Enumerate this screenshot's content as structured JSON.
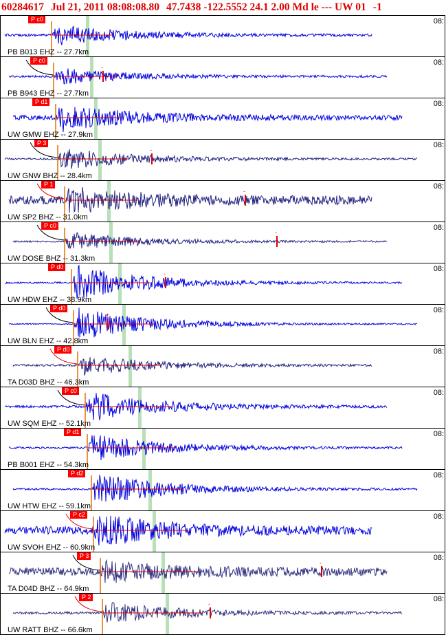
{
  "header": {
    "event_id": "60284617",
    "datetime": "Jul 21, 2011 08:08:08.80",
    "location": "47.7438 -122.5552 24.1 2.00 Md le --- UW 01",
    "suffix": "-1"
  },
  "panels": [
    {
      "station": "PB B013 EHZ -- 27.7km",
      "time": "08:",
      "pick": "P c0",
      "color": "#0000e0",
      "amp": 0.55,
      "noise": 0.06,
      "arrival": 0.18,
      "extra": "",
      "extraPos": 0,
      "curve": false
    },
    {
      "station": "PB B943 EHZ -- 27.7km",
      "time": "08:",
      "pick": "P c0",
      "color": "#0000e0",
      "amp": 0.45,
      "noise": 0.05,
      "arrival": 0.18,
      "extra": "-",
      "extraPos": 0.23,
      "curve": true
    },
    {
      "station": "UW GMW EHZ -- 27.9km",
      "time": "08:",
      "pick": "P d1",
      "color": "#0000e0",
      "amp": 0.7,
      "noise": 0.12,
      "arrival": 0.18,
      "extra": "",
      "extraPos": 0,
      "curve": false
    },
    {
      "station": "UW GNW BHZ -- 28.4km",
      "time": "08:",
      "pick": "P 3",
      "color": "#202080",
      "amp": 0.6,
      "noise": 0.05,
      "arrival": 0.18,
      "extra": "-",
      "extraPos": 0.34,
      "curve": true
    },
    {
      "station": "UW SP2 BHZ -- 31.0km",
      "time": "08:",
      "pick": "P 1",
      "color": "#202080",
      "amp": 0.6,
      "noise": 0.22,
      "arrival": 0.2,
      "extra": "-",
      "extraPos": 0.55,
      "curve": true
    },
    {
      "station": "UW DOSE BHZ -- 31.3km",
      "time": "08:",
      "pick": "P c0",
      "color": "#202080",
      "amp": 0.5,
      "noise": 0.04,
      "arrival": 0.19,
      "extra": "-",
      "extraPos": 0.62,
      "curve": true
    },
    {
      "station": "UW HDW EHZ -- 38.9km",
      "time": "08:",
      "pick": "P d0",
      "color": "#0000e0",
      "amp": 0.95,
      "noise": 0.04,
      "arrival": 0.21,
      "extra": "-",
      "extraPos": 0.37,
      "curve": false
    },
    {
      "station": "UW BLN EHZ -- 42.8km",
      "time": "08:",
      "pick": "P d0",
      "color": "#0000e0",
      "amp": 0.9,
      "noise": 0.03,
      "arrival": 0.21,
      "extra": "+",
      "extraPos": 0.24,
      "curve": true
    },
    {
      "station": "TA D03D BHZ -- 46.3km",
      "time": "08:",
      "pick": "P d0",
      "color": "#202080",
      "amp": 0.55,
      "noise": 0.05,
      "arrival": 0.22,
      "extra": "",
      "extraPos": 0,
      "curve": true
    },
    {
      "station": "UW SQM EHZ -- 52.1km",
      "time": "08:",
      "pick": "P c0",
      "color": "#0000e0",
      "amp": 0.8,
      "noise": 0.06,
      "arrival": 0.24,
      "extra": "",
      "extraPos": 0,
      "curve": true
    },
    {
      "station": "PB B001 EHZ -- 54.3km",
      "time": "08:",
      "pick": "P d1",
      "color": "#0000e0",
      "amp": 0.75,
      "noise": 0.05,
      "arrival": 0.24,
      "extra": "",
      "extraPos": 0,
      "curve": false
    },
    {
      "station": "UW HTW EHZ -- 59.1km",
      "time": "08:",
      "pick": "P d2",
      "color": "#0000e0",
      "amp": 0.9,
      "noise": 0.05,
      "arrival": 0.25,
      "extra": "",
      "extraPos": 0,
      "curve": false
    },
    {
      "station": "UW SVOH EHZ -- 60.9km",
      "time": "08:",
      "pick": "P c2",
      "color": "#0000e0",
      "amp": 0.75,
      "noise": 0.2,
      "arrival": 0.25,
      "extra": "",
      "extraPos": 0,
      "curve": true
    },
    {
      "station": "TA D04D BHZ -- 64.9km",
      "time": "08:",
      "pick": "P 3",
      "color": "#303080",
      "amp": 0.5,
      "noise": 0.2,
      "arrival": 0.27,
      "extra": "-",
      "extraPos": 0.72,
      "curve": true
    },
    {
      "station": "UW RATT BHZ -- 66.6km",
      "time": "08:",
      "pick": "P 2",
      "color": "#303080",
      "amp": 0.6,
      "noise": 0.06,
      "arrival": 0.27,
      "extra": "-",
      "extraPos": 0.47,
      "curve": true
    }
  ]
}
